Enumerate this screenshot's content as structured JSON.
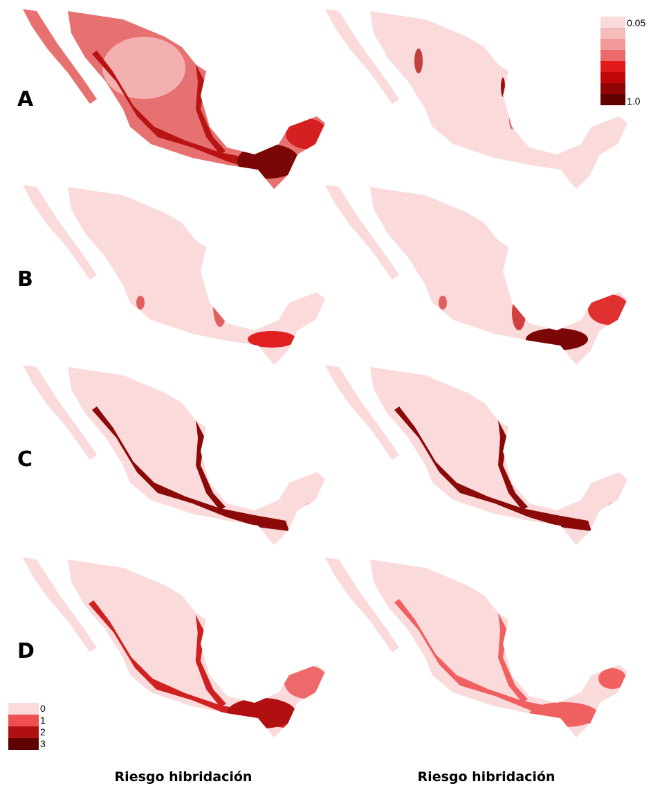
{
  "rows": [
    {
      "label": "A"
    },
    {
      "label": "B"
    },
    {
      "label": "C"
    },
    {
      "label": "D"
    }
  ],
  "legend_continuous": {
    "labels": [
      "0.05",
      "1.0"
    ]
  },
  "legend_discrete": {
    "labels": [
      "0",
      "1",
      "2",
      "3"
    ]
  },
  "columns": [
    {
      "label": "Riesgo hibridación"
    },
    {
      "label": "Riesgo hibridación"
    }
  ]
}
